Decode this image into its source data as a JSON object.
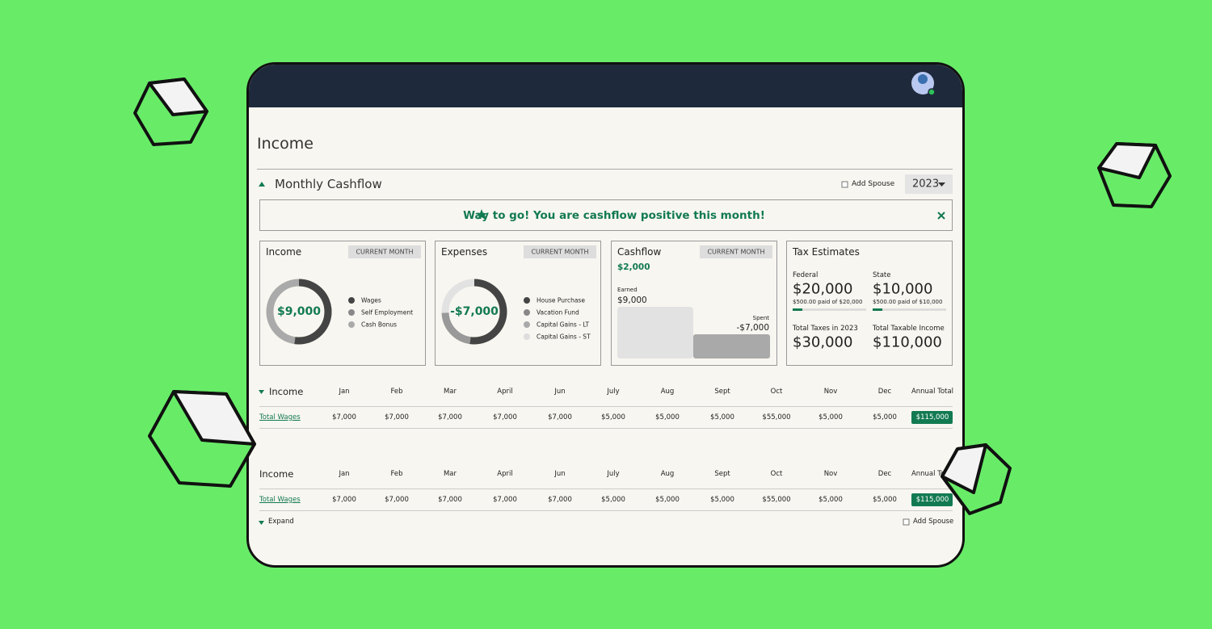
{
  "page": {
    "title": "Income"
  },
  "cashflow": {
    "title": "Monthly Cashflow",
    "add_spouse": "Add Spouse",
    "year": "2023",
    "banner": "Way to go! You are cashflow positive this month!"
  },
  "cards": [
    {
      "title": "Income",
      "filter": "CURRENT MONTH",
      "center": "$9,000",
      "legend": [
        "Wages",
        "Self Employment",
        "Cash Bonus"
      ]
    },
    {
      "title": "Expenses",
      "filter": "CURRENT MONTH",
      "center": "-$7,000",
      "legend": [
        "House Purchase",
        "Vacation Fund",
        "Capital Gains - LT",
        "Capital Gains - ST"
      ]
    },
    {
      "title": "Cashflow",
      "filter": "CURRENT MONTH",
      "value": "$2,000",
      "earned_label": "Earned",
      "earned": "$9,000",
      "spent_label": "Spent",
      "spent": "-$7,000"
    },
    {
      "title": "Tax Estimates",
      "items": [
        {
          "label": "Federal",
          "value": "$20,000",
          "note": "$500.00 paid of $20,000"
        },
        {
          "label": "State",
          "value": "$10,000",
          "note": "$500.00 paid of $10,000"
        }
      ],
      "totals": [
        {
          "label": "Total Taxes in 2023",
          "value": "$30,000"
        },
        {
          "label": "Total Taxable Income",
          "value": "$110,000"
        }
      ]
    }
  ],
  "tables": [
    {
      "title": "Income",
      "columns": [
        "Jan",
        "Feb",
        "Mar",
        "April",
        "Jun",
        "July",
        "Aug",
        "Sept",
        "Oct",
        "Nov",
        "Dec",
        "Annual Total"
      ],
      "rows": [
        {
          "label": "Total Wages",
          "cells": [
            "$7,000",
            "$7,000",
            "$7,000",
            "$7,000",
            "$7,000",
            "$5,000",
            "$5,000",
            "$5,000",
            "$55,000",
            "$5,000",
            "$5,000",
            "$115,000"
          ]
        }
      ]
    },
    {
      "title": "Income",
      "columns": [
        "Jan",
        "Feb",
        "Mar",
        "April",
        "Jun",
        "July",
        "Aug",
        "Sept",
        "Oct",
        "Nov",
        "Dec",
        "Annual Total"
      ],
      "rows": [
        {
          "label": "Total Wages",
          "cells": [
            "$7,000",
            "$7,000",
            "$7,000",
            "$7,000",
            "$7,000",
            "$5,000",
            "$5,000",
            "$5,000",
            "$55,000",
            "$5,000",
            "$5,000",
            "$115,000"
          ]
        }
      ]
    }
  ],
  "footer": {
    "expand": "Expand",
    "add_spouse": "Add Spouse"
  }
}
